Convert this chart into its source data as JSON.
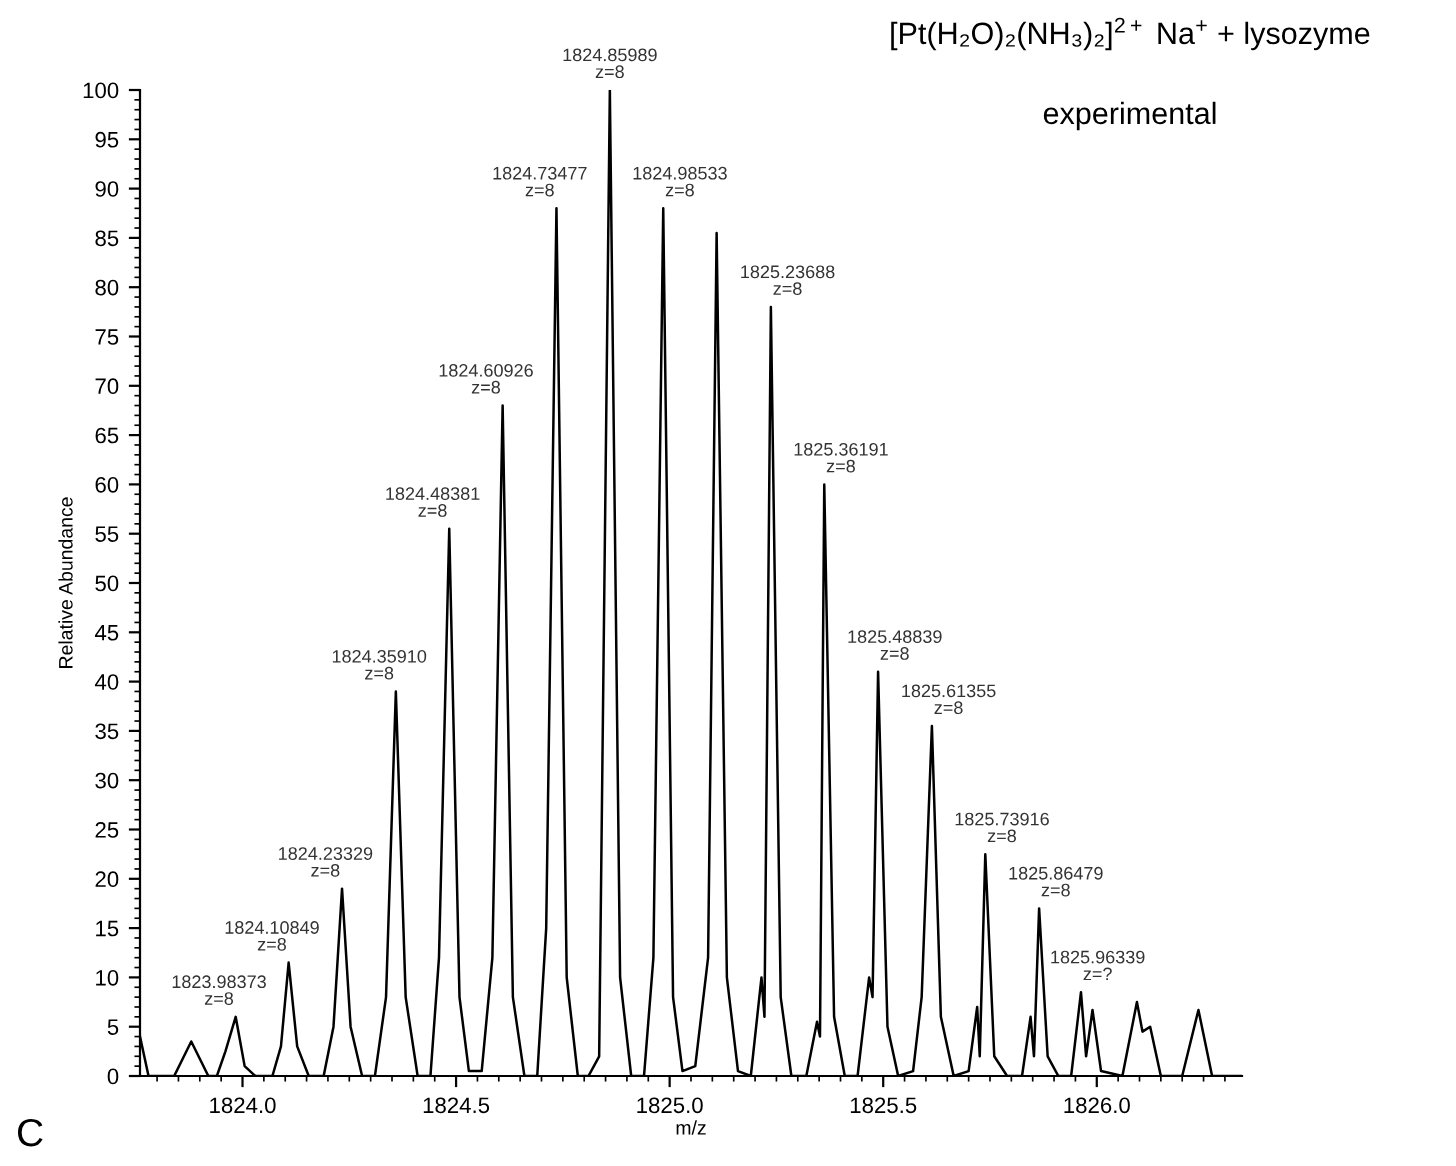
{
  "chart_data": {
    "type": "line",
    "title": "[Pt(H₂O)₂(NH₃)₂]$^{2+}$ Na$^{+}$ + lysozyme",
    "subtitle": "experimental",
    "xlabel": "m/z",
    "ylabel": "Relative Abundance",
    "xlim": [
      1823.76,
      1826.34
    ],
    "ylim": [
      0,
      100
    ],
    "xticks": [
      {
        "value": 1824.0,
        "label": "1824.0"
      },
      {
        "value": 1824.5,
        "label": "1824.5"
      },
      {
        "value": 1825.0,
        "label": "1825.0"
      },
      {
        "value": 1825.5,
        "label": "1825.5"
      },
      {
        "value": 1826.0,
        "label": "1826.0"
      }
    ],
    "yticks": [
      0,
      5,
      10,
      15,
      20,
      25,
      30,
      35,
      40,
      45,
      50,
      55,
      60,
      65,
      70,
      75,
      80,
      85,
      90,
      95,
      100
    ],
    "grid": false,
    "legend": false,
    "marker": "none",
    "line_style": "solid",
    "series": [
      {
        "color": "#000000",
        "x": [
          1823.76,
          1823.78,
          1823.84,
          1823.88,
          1823.92,
          1823.94,
          1823.96,
          1823.984,
          1824.005,
          1824.03,
          1824.07,
          1824.09,
          1824.108,
          1824.128,
          1824.155,
          1824.19,
          1824.213,
          1824.233,
          1824.253,
          1824.28,
          1824.31,
          1824.336,
          1824.359,
          1824.382,
          1824.41,
          1824.44,
          1824.46,
          1824.484,
          1824.508,
          1824.53,
          1824.56,
          1824.585,
          1824.609,
          1824.633,
          1824.66,
          1824.69,
          1824.711,
          1824.735,
          1824.759,
          1824.785,
          1824.81,
          1824.835,
          1824.86,
          1824.884,
          1824.91,
          1824.94,
          1824.962,
          1824.985,
          1825.008,
          1825.03,
          1825.06,
          1825.09,
          1825.11,
          1825.134,
          1825.16,
          1825.19,
          1825.215,
          1825.222,
          1825.237,
          1825.26,
          1825.285,
          1825.32,
          1825.345,
          1825.352,
          1825.362,
          1825.385,
          1825.41,
          1825.44,
          1825.467,
          1825.475,
          1825.488,
          1825.51,
          1825.535,
          1825.57,
          1825.59,
          1825.614,
          1825.635,
          1825.665,
          1825.7,
          1825.72,
          1825.726,
          1825.739,
          1825.76,
          1825.79,
          1825.825,
          1825.845,
          1825.853,
          1825.865,
          1825.885,
          1825.91,
          1825.94,
          1825.963,
          1825.975,
          1825.99,
          1826.01,
          1826.06,
          1826.094,
          1826.107,
          1826.125,
          1826.15,
          1826.2,
          1826.238,
          1826.27,
          1826.34
        ],
        "values": [
          4,
          0,
          0,
          3.5,
          0,
          0,
          2.5,
          6,
          1,
          0,
          0,
          3,
          11.5,
          3,
          0,
          0,
          5,
          19,
          5,
          0,
          0,
          8,
          39,
          8,
          0,
          0,
          12,
          55.5,
          8,
          0.5,
          0.5,
          12,
          68,
          8,
          0,
          0,
          15,
          88,
          10,
          0,
          0,
          2,
          100,
          10,
          0,
          0,
          12,
          88,
          8,
          0.5,
          1,
          12,
          85.5,
          10,
          0.5,
          0,
          10,
          6,
          78,
          8,
          0,
          0,
          5.5,
          4,
          60,
          6,
          0,
          0,
          10,
          8,
          41,
          5,
          0,
          0.5,
          8,
          35.5,
          6,
          0,
          0.5,
          7,
          2,
          22.5,
          2,
          0,
          0,
          6,
          2,
          17,
          2,
          0,
          0,
          8.5,
          2,
          6.7,
          0.5,
          0,
          7.5,
          4.5,
          5,
          0,
          0,
          6.7,
          0,
          0
        ]
      }
    ],
    "annotations": [
      {
        "text": "1823.98373\nz=8",
        "x": 1823.984,
        "y": 6
      },
      {
        "text": "1824.10849\nz=8",
        "x": 1824.108,
        "y": 11.5
      },
      {
        "text": "1824.23329\nz=8",
        "x": 1824.233,
        "y": 19
      },
      {
        "text": "1824.35910\nz=8",
        "x": 1824.359,
        "y": 39
      },
      {
        "text": "1824.48381\nz=8",
        "x": 1824.484,
        "y": 55.5
      },
      {
        "text": "1824.60926\nz=8",
        "x": 1824.609,
        "y": 68
      },
      {
        "text": "1824.73477\nz=8",
        "x": 1824.735,
        "y": 88
      },
      {
        "text": "1824.85989\nz=8",
        "x": 1824.86,
        "y": 100
      },
      {
        "text": "1824.98533\nz=8",
        "x": 1824.985,
        "y": 88
      },
      {
        "text": "1825.23688\nz=8",
        "x": 1825.237,
        "y": 78
      },
      {
        "text": "1825.36191\nz=8",
        "x": 1825.362,
        "y": 60
      },
      {
        "text": "1825.48839\nz=8",
        "x": 1825.488,
        "y": 41
      },
      {
        "text": "1825.61355\nz=8",
        "x": 1825.614,
        "y": 35.5
      },
      {
        "text": "1825.73916\nz=8",
        "x": 1825.739,
        "y": 22.5
      },
      {
        "text": "1825.86479\nz=8",
        "x": 1825.865,
        "y": 17
      },
      {
        "text": "1825.96339\nz=?",
        "x": 1825.963,
        "y": 8.5
      },
      "C"
    ]
  }
}
